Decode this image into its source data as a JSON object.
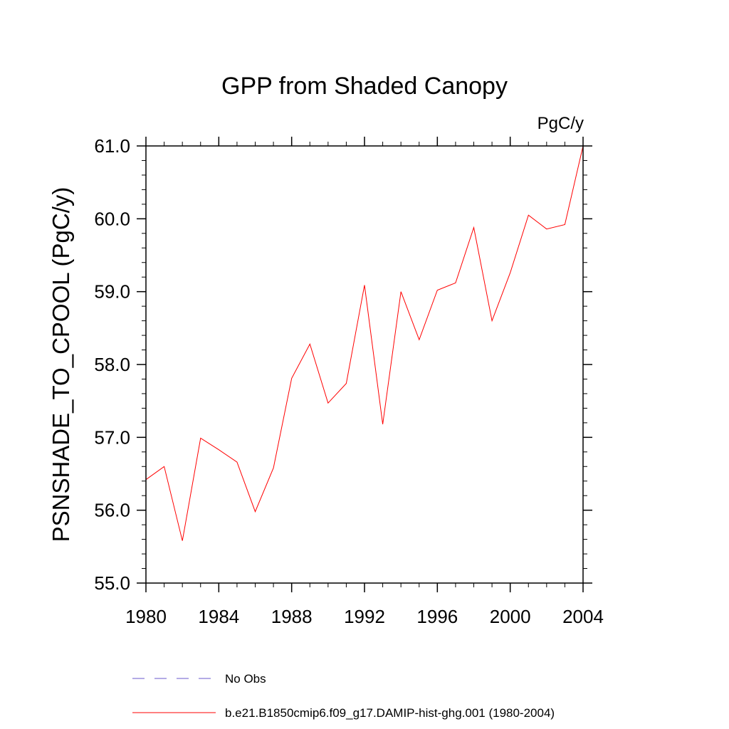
{
  "chart_data": {
    "type": "line",
    "title": "GPP from Shaded Canopy",
    "units_label": "PgC/y",
    "ylabel": "PSNSHADE_TO_CPOOL  (PgC/y)",
    "xlabel": "",
    "xlim": [
      1980,
      2004
    ],
    "ylim": [
      55.0,
      61.0
    ],
    "x_ticks": [
      1980,
      1984,
      1988,
      1992,
      1996,
      2000,
      2004
    ],
    "x_tick_labels": [
      "1980",
      "1984",
      "1988",
      "1992",
      "1996",
      "2000",
      "2004"
    ],
    "y_ticks": [
      55.0,
      56.0,
      57.0,
      58.0,
      59.0,
      60.0,
      61.0
    ],
    "y_tick_labels": [
      "55.0",
      "56.0",
      "57.0",
      "58.0",
      "59.0",
      "60.0",
      "61.0"
    ],
    "grid": false,
    "legend_position": "bottom",
    "series": [
      {
        "name": "b.e21.B1850cmip6.f09_g17.DAMIP-hist-ghg.001 (1980-2004)",
        "color": "#ff0000",
        "style": "solid",
        "x": [
          1980,
          1981,
          1982,
          1983,
          1984,
          1985,
          1986,
          1987,
          1988,
          1989,
          1990,
          1991,
          1992,
          1993,
          1994,
          1995,
          1996,
          1997,
          1998,
          1999,
          2000,
          2001,
          2002,
          2003,
          2004
        ],
        "values": [
          56.42,
          56.6,
          55.58,
          56.99,
          56.83,
          56.66,
          55.98,
          56.58,
          57.81,
          58.28,
          57.47,
          57.74,
          59.09,
          57.18,
          59.0,
          58.34,
          59.02,
          59.12,
          59.88,
          58.6,
          59.26,
          60.05,
          59.86,
          59.92,
          61.0
        ]
      }
    ],
    "legend": [
      {
        "label": "No Obs",
        "color": "#6a5acd",
        "style": "dashed"
      },
      {
        "label": "b.e21.B1850cmip6.f09_g17.DAMIP-hist-ghg.001 (1980-2004)",
        "color": "#ff0000",
        "style": "solid"
      }
    ]
  }
}
